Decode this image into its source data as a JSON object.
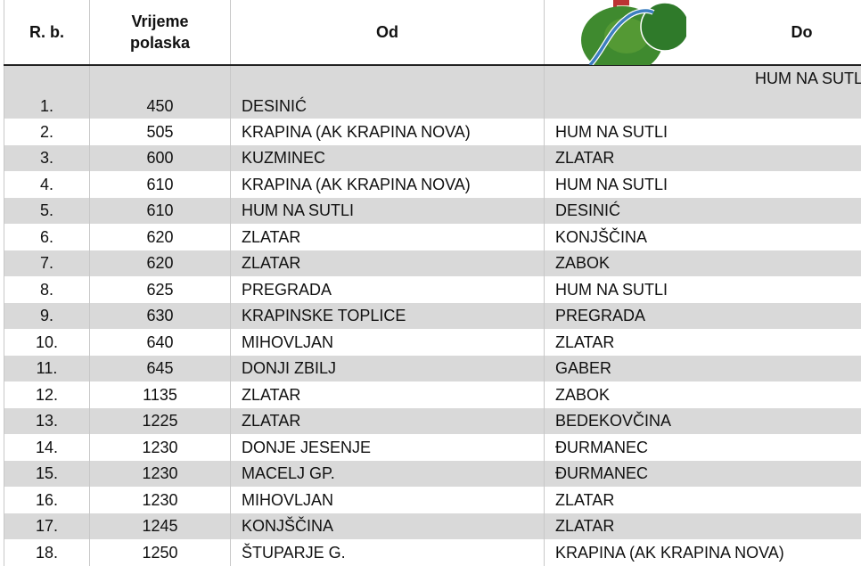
{
  "headers": {
    "rb": "R. b.",
    "vrijeme": "Vrijeme polaska",
    "od": "Od",
    "do": "Do"
  },
  "logo": {
    "icon": "watercolor-hills-logo",
    "colors": {
      "green": "#3f8a2f",
      "river": "#3d7fc0"
    }
  },
  "rows": [
    {
      "rb": "1.",
      "time": "450",
      "od": "DESINIĆ",
      "do": "HUM NA SUTLI"
    },
    {
      "rb": "2.",
      "time": "505",
      "od": "KRAPINA (AK KRAPINA NOVA)",
      "do": "HUM NA SUTLI"
    },
    {
      "rb": "3.",
      "time": "600",
      "od": "KUZMINEC",
      "do": "ZLATAR"
    },
    {
      "rb": "4.",
      "time": "610",
      "od": "KRAPINA (AK KRAPINA NOVA)",
      "do": "HUM NA SUTLI"
    },
    {
      "rb": "5.",
      "time": "610",
      "od": "HUM NA SUTLI",
      "do": "DESINIĆ"
    },
    {
      "rb": "6.",
      "time": "620",
      "od": "ZLATAR",
      "do": "KONJŠČINA"
    },
    {
      "rb": "7.",
      "time": "620",
      "od": "ZLATAR",
      "do": "ZABOK"
    },
    {
      "rb": "8.",
      "time": "625",
      "od": "PREGRADA",
      "do": "HUM NA SUTLI"
    },
    {
      "rb": "9.",
      "time": "630",
      "od": "KRAPINSKE TOPLICE",
      "do": "PREGRADA"
    },
    {
      "rb": "10.",
      "time": "640",
      "od": "MIHOVLJAN",
      "do": "ZLATAR"
    },
    {
      "rb": "11.",
      "time": "645",
      "od": "DONJI ZBILJ",
      "do": "GABER"
    },
    {
      "rb": "12.",
      "time": "1135",
      "od": "ZLATAR",
      "do": "ZABOK"
    },
    {
      "rb": "13.",
      "time": "1225",
      "od": "ZLATAR",
      "do": "BEDEKOVČINA"
    },
    {
      "rb": "14.",
      "time": "1230",
      "od": "DONJE JESENJE",
      "do": "ĐURMANEC"
    },
    {
      "rb": "15.",
      "time": "1230",
      "od": "MACELJ GP.",
      "do": "ĐURMANEC"
    },
    {
      "rb": "16.",
      "time": "1230",
      "od": "MIHOVLJAN",
      "do": "ZLATAR"
    },
    {
      "rb": "17.",
      "time": "1245",
      "od": "KONJŠČINA",
      "do": "ZLATAR"
    },
    {
      "rb": "18.",
      "time": "1250",
      "od": "ŠTUPARJE G.",
      "do": "KRAPINA (AK KRAPINA NOVA)"
    }
  ]
}
